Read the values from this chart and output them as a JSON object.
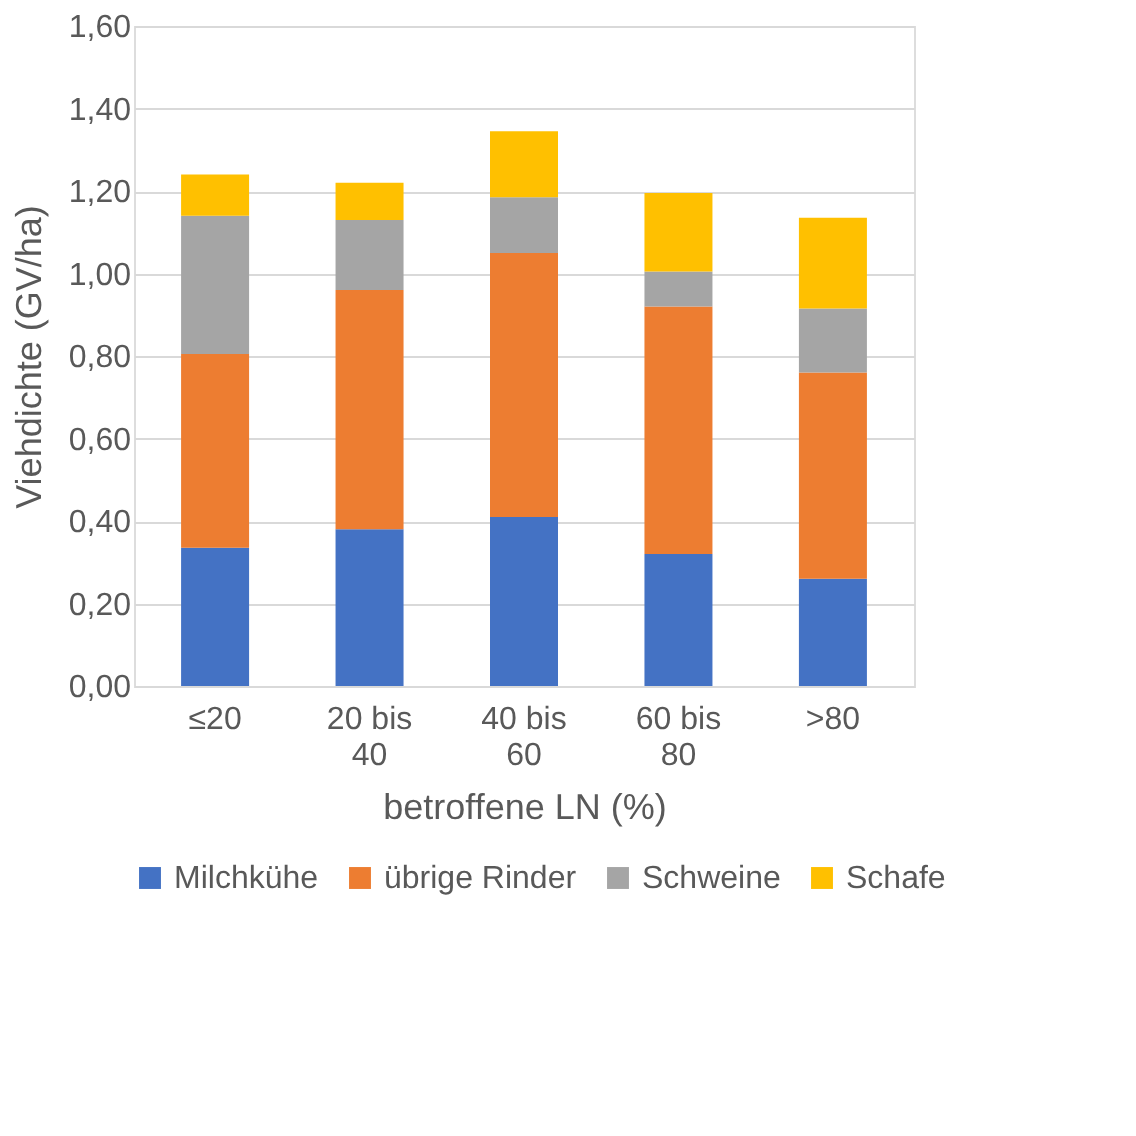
{
  "chart_data": {
    "type": "bar",
    "stacked": true,
    "xlabel": "betroffene LN (%)",
    "ylabel": "Viehdichte (GV/ha)",
    "categories": [
      "≤20",
      "20 bis 40",
      "40 bis 60",
      "60 bis 80",
      ">80"
    ],
    "series": [
      {
        "name": "Milchkühe",
        "color": "#4472c4",
        "values": [
          0.335,
          0.38,
          0.41,
          0.32,
          0.26
        ]
      },
      {
        "name": "übrige Rinder",
        "color": "#ed7d31",
        "values": [
          0.47,
          0.58,
          0.64,
          0.6,
          0.5
        ]
      },
      {
        "name": "Schweine",
        "color": "#a5a5a5",
        "values": [
          0.335,
          0.17,
          0.135,
          0.085,
          0.155
        ]
      },
      {
        "name": "Schafe",
        "color": "#ffc000",
        "values": [
          0.1,
          0.09,
          0.16,
          0.19,
          0.22
        ]
      }
    ],
    "ylim": [
      0,
      1.6
    ],
    "yticks": [
      {
        "value": 0,
        "label": "0,00"
      },
      {
        "value": 0.2,
        "label": "0,20"
      },
      {
        "value": 0.4,
        "label": "0,40"
      },
      {
        "value": 0.6,
        "label": "0,60"
      },
      {
        "value": 0.8,
        "label": "0,80"
      },
      {
        "value": 1.0,
        "label": "1,00"
      },
      {
        "value": 1.2,
        "label": "1,20"
      },
      {
        "value": 1.4,
        "label": "1,40"
      },
      {
        "value": 1.6,
        "label": "1,60"
      }
    ],
    "grid": "y",
    "legend": "bottom"
  }
}
